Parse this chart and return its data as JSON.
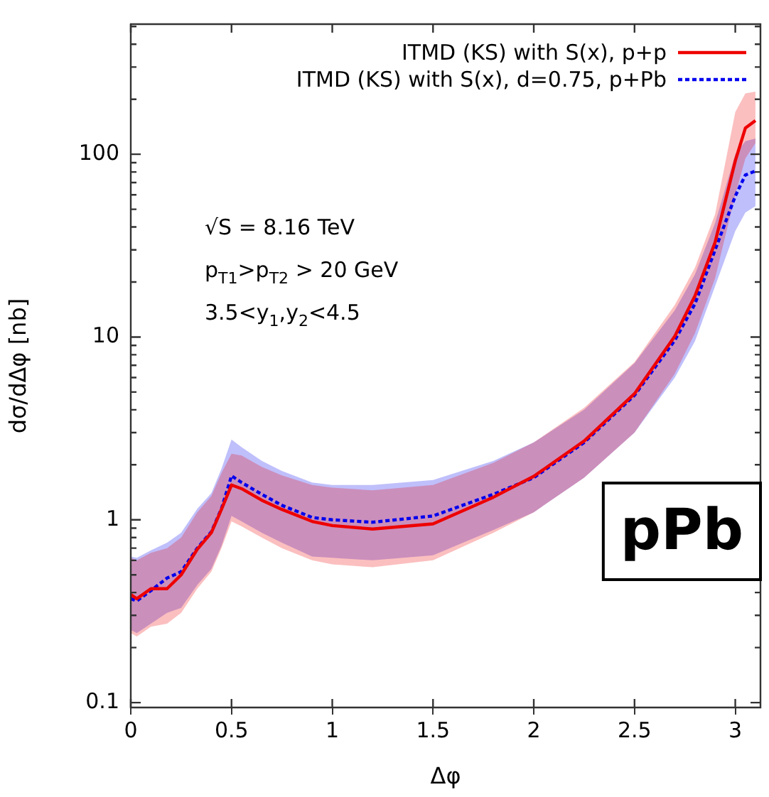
{
  "chart_data": {
    "type": "line",
    "xlabel": "Δφ",
    "ylabel": "dσ/dΔφ [nb]",
    "log": "y",
    "grid": false,
    "legend": "top right",
    "marker": "none",
    "xlim": [
      0,
      3.125
    ],
    "xticks": [
      0,
      0.5,
      1,
      1.5,
      2,
      2.5,
      3
    ],
    "ylim": [
      0.094,
      515
    ],
    "yticks": [
      0.1,
      {
        "value": 0.2,
        "label": null
      },
      {
        "value": 0.3,
        "label": null
      },
      {
        "value": 0.4,
        "label": null
      },
      {
        "value": 0.5,
        "label": null
      },
      {
        "value": 0.6,
        "label": null
      },
      {
        "value": 0.7,
        "label": null
      },
      {
        "value": 0.8,
        "label": null
      },
      {
        "value": 0.9,
        "label": null
      },
      1,
      {
        "value": 2,
        "label": null
      },
      {
        "value": 3,
        "label": null
      },
      {
        "value": 4,
        "label": null
      },
      {
        "value": 5,
        "label": null
      },
      {
        "value": 6,
        "label": null
      },
      {
        "value": 7,
        "label": null
      },
      {
        "value": 8,
        "label": null
      },
      {
        "value": 9,
        "label": null
      },
      10,
      {
        "value": 20,
        "label": null
      },
      {
        "value": 30,
        "label": null
      },
      {
        "value": 40,
        "label": null
      },
      {
        "value": 50,
        "label": null
      },
      {
        "value": 60,
        "label": null
      },
      {
        "value": 70,
        "label": null
      },
      {
        "value": 80,
        "label": null
      },
      {
        "value": 90,
        "label": null
      },
      100,
      {
        "value": 200,
        "label": null
      },
      {
        "value": 300,
        "label": null
      },
      {
        "value": 400,
        "label": null
      },
      {
        "value": 500,
        "label": null
      }
    ],
    "x": [
      0,
      0.03,
      0.1,
      0.18,
      0.25,
      0.33,
      0.4,
      0.45,
      0.5,
      0.55,
      0.65,
      0.75,
      0.9,
      1.0,
      1.2,
      1.5,
      1.8,
      2.0,
      2.25,
      2.5,
      2.7,
      2.8,
      2.9,
      3.0,
      3.05,
      3.1
    ],
    "series": [
      {
        "name": "ITMD (KS) with S(x), p+p",
        "color": "#ee0000",
        "line_style": "solid",
        "values": [
          0.39,
          0.37,
          0.42,
          0.42,
          0.5,
          0.69,
          0.85,
          1.14,
          1.55,
          1.48,
          1.28,
          1.14,
          0.98,
          0.93,
          0.89,
          0.95,
          1.33,
          1.73,
          2.7,
          4.9,
          10.1,
          16.8,
          33,
          92,
          139,
          153
        ],
        "lower": [
          0.24,
          0.23,
          0.26,
          0.27,
          0.31,
          0.42,
          0.52,
          0.7,
          0.98,
          0.92,
          0.8,
          0.7,
          0.6,
          0.57,
          0.55,
          0.6,
          0.85,
          1.1,
          1.7,
          3.0,
          6.3,
          10.5,
          21,
          60,
          95,
          115
        ],
        "upper": [
          0.62,
          0.6,
          0.66,
          0.7,
          0.8,
          1.1,
          1.35,
          1.8,
          2.3,
          2.25,
          1.95,
          1.75,
          1.55,
          1.5,
          1.45,
          1.55,
          2.05,
          2.65,
          4.1,
          7.3,
          15,
          24,
          47,
          170,
          215,
          220
        ]
      },
      {
        "name": "ITMD (KS) with S(x), d=0.75, p+Pb",
        "color": "#0000ee",
        "line_style": "dotted",
        "values": [
          0.37,
          0.36,
          0.41,
          0.48,
          0.52,
          0.7,
          0.86,
          1.15,
          1.74,
          1.6,
          1.38,
          1.2,
          1.03,
          1.0,
          0.97,
          1.05,
          1.38,
          1.7,
          2.65,
          4.8,
          9.6,
          15.2,
          30,
          59,
          77,
          81
        ],
        "lower": [
          0.25,
          0.24,
          0.27,
          0.31,
          0.33,
          0.44,
          0.54,
          0.72,
          1.05,
          0.98,
          0.85,
          0.75,
          0.63,
          0.62,
          0.6,
          0.64,
          0.88,
          1.1,
          1.7,
          3.0,
          6.0,
          9.5,
          19,
          38,
          48,
          52
        ],
        "upper": [
          0.63,
          0.62,
          0.68,
          0.75,
          0.85,
          1.15,
          1.4,
          1.9,
          2.75,
          2.5,
          2.1,
          1.85,
          1.6,
          1.55,
          1.55,
          1.65,
          2.1,
          2.65,
          4.0,
          7.2,
          14,
          22,
          42,
          100,
          118,
          122
        ]
      }
    ],
    "annotations": [
      "√S = 8.16 TeV",
      "p$_{T1}$>p$_{T2}$ > 20 GeV",
      "3.5<y$_{1}$,y$_{2}$<4.5",
      "pPb"
    ]
  }
}
